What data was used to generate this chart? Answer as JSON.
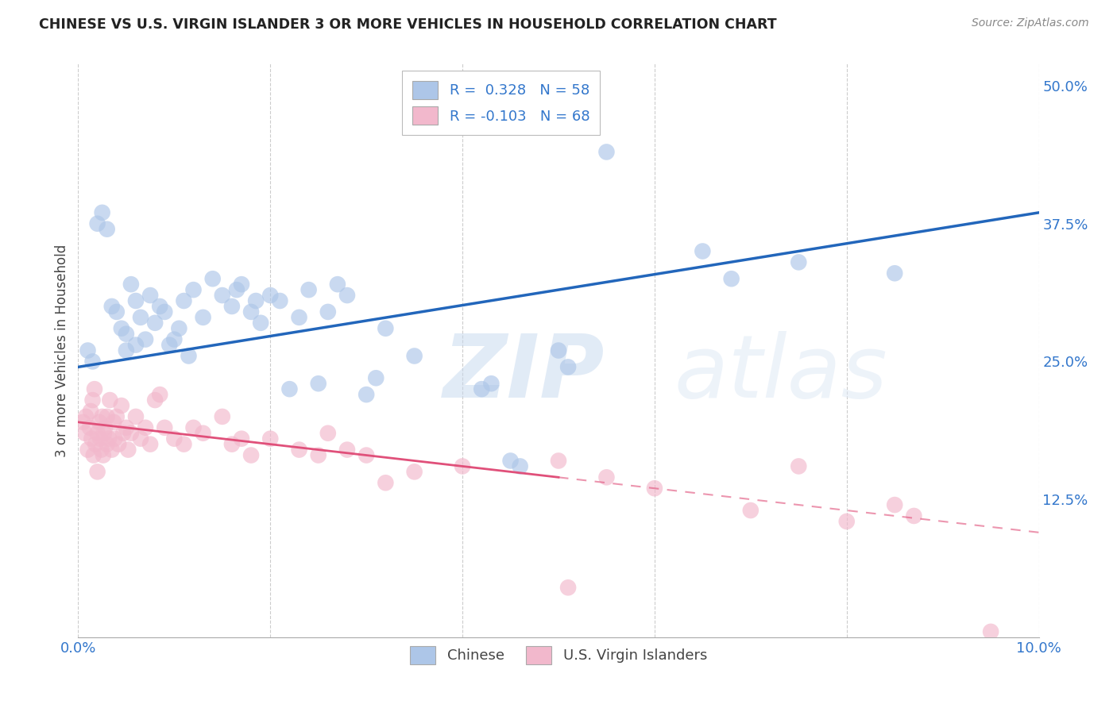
{
  "title": "CHINESE VS U.S. VIRGIN ISLANDER 3 OR MORE VEHICLES IN HOUSEHOLD CORRELATION CHART",
  "source": "Source: ZipAtlas.com",
  "ylabel": "3 or more Vehicles in Household",
  "xlim": [
    0.0,
    10.0
  ],
  "ylim": [
    0.0,
    52.0
  ],
  "chinese_R": "0.328",
  "chinese_N": "58",
  "virgin_R": "-0.103",
  "virgin_N": "68",
  "blue_color": "#adc6e8",
  "blue_line_color": "#2266bb",
  "pink_color": "#f2b8cc",
  "pink_line_color": "#e0507a",
  "legend_label_chinese": "Chinese",
  "legend_label_virgin": "U.S. Virgin Islanders",
  "watermark_zip": "ZIP",
  "watermark_atlas": "atlas",
  "blue_trend_x0": 0.0,
  "blue_trend_y0": 24.5,
  "blue_trend_x1": 10.0,
  "blue_trend_y1": 38.5,
  "pink_trend_x0": 0.0,
  "pink_trend_y0": 19.5,
  "pink_trend_x1": 10.0,
  "pink_trend_y1": 9.5,
  "pink_solid_end": 5.0,
  "chinese_x": [
    0.1,
    0.15,
    0.2,
    0.25,
    0.3,
    0.35,
    0.4,
    0.45,
    0.5,
    0.5,
    0.55,
    0.6,
    0.6,
    0.65,
    0.7,
    0.75,
    0.8,
    0.85,
    0.9,
    0.95,
    1.0,
    1.05,
    1.1,
    1.15,
    1.2,
    1.3,
    1.4,
    1.5,
    1.6,
    1.65,
    1.7,
    1.8,
    1.85,
    1.9,
    2.0,
    2.1,
    2.2,
    2.3,
    2.4,
    2.5,
    2.6,
    2.7,
    2.8,
    3.0,
    3.1,
    3.2,
    3.5,
    4.2,
    4.3,
    5.0,
    5.1,
    5.5,
    6.5,
    6.8,
    7.5,
    8.5,
    4.5,
    4.6
  ],
  "chinese_y": [
    26.0,
    25.0,
    37.5,
    38.5,
    37.0,
    30.0,
    29.5,
    28.0,
    27.5,
    26.0,
    32.0,
    30.5,
    26.5,
    29.0,
    27.0,
    31.0,
    28.5,
    30.0,
    29.5,
    26.5,
    27.0,
    28.0,
    30.5,
    25.5,
    31.5,
    29.0,
    32.5,
    31.0,
    30.0,
    31.5,
    32.0,
    29.5,
    30.5,
    28.5,
    31.0,
    30.5,
    22.5,
    29.0,
    31.5,
    23.0,
    29.5,
    32.0,
    31.0,
    22.0,
    23.5,
    28.0,
    25.5,
    22.5,
    23.0,
    26.0,
    24.5,
    44.0,
    35.0,
    32.5,
    34.0,
    33.0,
    16.0,
    15.5
  ],
  "virgin_x": [
    0.05,
    0.07,
    0.08,
    0.1,
    0.12,
    0.13,
    0.14,
    0.15,
    0.16,
    0.17,
    0.18,
    0.2,
    0.2,
    0.22,
    0.23,
    0.24,
    0.25,
    0.26,
    0.27,
    0.28,
    0.3,
    0.3,
    0.32,
    0.33,
    0.35,
    0.37,
    0.38,
    0.4,
    0.42,
    0.45,
    0.47,
    0.5,
    0.52,
    0.55,
    0.6,
    0.65,
    0.7,
    0.75,
    0.8,
    0.85,
    0.9,
    1.0,
    1.1,
    1.2,
    1.3,
    1.5,
    1.6,
    1.7,
    1.8,
    2.0,
    2.3,
    2.5,
    2.6,
    2.8,
    3.0,
    3.2,
    3.5,
    4.0,
    5.0,
    5.1,
    5.5,
    6.0,
    7.0,
    7.5,
    8.0,
    8.5,
    8.7,
    9.5
  ],
  "virgin_y": [
    19.5,
    18.5,
    20.0,
    17.0,
    19.0,
    20.5,
    18.0,
    21.5,
    16.5,
    22.5,
    17.5,
    18.5,
    15.0,
    19.5,
    18.0,
    17.0,
    20.0,
    16.5,
    18.5,
    19.0,
    17.5,
    20.0,
    18.0,
    21.5,
    17.0,
    19.5,
    18.0,
    20.0,
    17.5,
    21.0,
    18.5,
    19.0,
    17.0,
    18.5,
    20.0,
    18.0,
    19.0,
    17.5,
    21.5,
    22.0,
    19.0,
    18.0,
    17.5,
    19.0,
    18.5,
    20.0,
    17.5,
    18.0,
    16.5,
    18.0,
    17.0,
    16.5,
    18.5,
    17.0,
    16.5,
    14.0,
    15.0,
    15.5,
    16.0,
    4.5,
    14.5,
    13.5,
    11.5,
    15.5,
    10.5,
    12.0,
    11.0,
    0.5
  ]
}
